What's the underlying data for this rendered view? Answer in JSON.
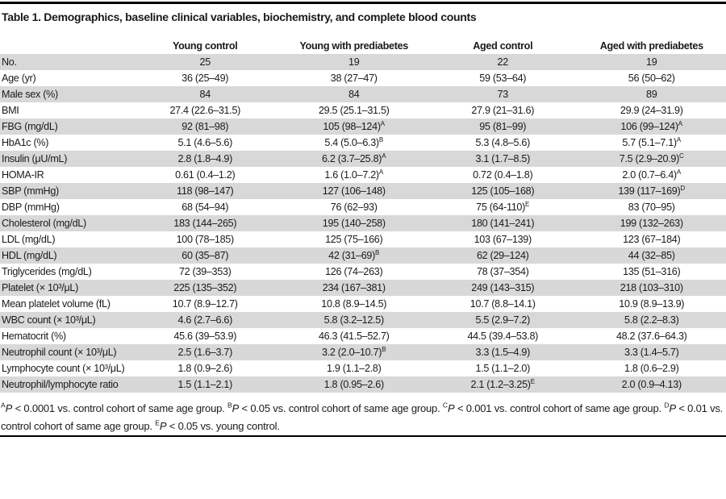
{
  "page": {
    "title": "Table 1. Demographics, baseline clinical variables, biochemistry, and complete blood counts"
  },
  "colors": {
    "stripe": "#d8d8d8",
    "rule": "#000000",
    "text": "#1a1a1a"
  },
  "table": {
    "columns": [
      "",
      "Young control",
      "Young with prediabetes",
      "Aged control",
      "Aged with prediabetes"
    ],
    "rows": [
      {
        "label": "No.",
        "cells": [
          {
            "t": "25"
          },
          {
            "t": "19"
          },
          {
            "t": "22"
          },
          {
            "t": "19"
          }
        ]
      },
      {
        "label": "Age (yr)",
        "cells": [
          {
            "t": "36 (25–49)"
          },
          {
            "t": "38 (27–47)"
          },
          {
            "t": "59 (53–64)"
          },
          {
            "t": "56 (50–62)"
          }
        ]
      },
      {
        "label": "Male sex (%)",
        "cells": [
          {
            "t": "84"
          },
          {
            "t": "84"
          },
          {
            "t": "73"
          },
          {
            "t": "89"
          }
        ]
      },
      {
        "label": "BMI",
        "cells": [
          {
            "t": "27.4 (22.6–31.5)"
          },
          {
            "t": "29.5 (25.1–31.5)"
          },
          {
            "t": "27.9 (21–31.6)"
          },
          {
            "t": "29.9 (24–31.9)"
          }
        ]
      },
      {
        "label": "FBG (mg/dL)",
        "cells": [
          {
            "t": "92 (81–98)"
          },
          {
            "t": "105 (98–124)",
            "s": "A"
          },
          {
            "t": "95 (81–99)"
          },
          {
            "t": "106 (99–124)",
            "s": "A"
          }
        ]
      },
      {
        "label": "HbA1c (%)",
        "cells": [
          {
            "t": "5.1 (4.6–5.6)"
          },
          {
            "t": "5.4 (5.0–6.3)",
            "s": "B"
          },
          {
            "t": "5.3 (4.8–5.6)"
          },
          {
            "t": "5.7 (5.1–7.1)",
            "s": "A"
          }
        ]
      },
      {
        "label": "Insulin (μU/mL)",
        "cells": [
          {
            "t": "2.8 (1.8–4.9)"
          },
          {
            "t": "6.2 (3.7–25.8)",
            "s": "A"
          },
          {
            "t": "3.1 (1.7–8.5)"
          },
          {
            "t": "7.5 (2.9–20.9)",
            "s": "C"
          }
        ]
      },
      {
        "label": "HOMA-IR",
        "cells": [
          {
            "t": "0.61 (0.4–1.2)"
          },
          {
            "t": "1.6 (1.0–7.2)",
            "s": "A"
          },
          {
            "t": "0.72 (0.4–1.8)"
          },
          {
            "t": "2.0 (0.7–6.4)",
            "s": "A"
          }
        ]
      },
      {
        "label": "SBP (mmHg)",
        "cells": [
          {
            "t": "118 (98–147)"
          },
          {
            "t": "127 (106–148)"
          },
          {
            "t": "125 (105–168)"
          },
          {
            "t": "139 (117–169)",
            "s": "D"
          }
        ]
      },
      {
        "label": "DBP (mmHg)",
        "cells": [
          {
            "t": "68 (54–94)"
          },
          {
            "t": "76 (62–93)"
          },
          {
            "t": "75 (64-110)",
            "s": "E"
          },
          {
            "t": "83 (70–95)"
          }
        ]
      },
      {
        "label": "Cholesterol (mg/dL)",
        "cells": [
          {
            "t": "183 (144–265)"
          },
          {
            "t": "195 (140–258)"
          },
          {
            "t": "180 (141–241)"
          },
          {
            "t": "199 (132–263)"
          }
        ]
      },
      {
        "label": "LDL (mg/dL)",
        "cells": [
          {
            "t": "100 (78–185)"
          },
          {
            "t": "125 (75–166)"
          },
          {
            "t": "103 (67–139)"
          },
          {
            "t": "123 (67–184)"
          }
        ]
      },
      {
        "label": "HDL (mg/dL)",
        "cells": [
          {
            "t": "60 (35–87)"
          },
          {
            "t": "42 (31–69)",
            "s": "B"
          },
          {
            "t": "62 (29–124)"
          },
          {
            "t": "44 (32–85)"
          }
        ]
      },
      {
        "label": "Triglycerides (mg/dL)",
        "cells": [
          {
            "t": "72 (39–353)"
          },
          {
            "t": "126 (74–263)"
          },
          {
            "t": "78 (37–354)"
          },
          {
            "t": "135 (51–316)"
          }
        ]
      },
      {
        "label": "Platelet (× 10³/μL)",
        "cells": [
          {
            "t": "225 (135–352)"
          },
          {
            "t": "234 (167–381)"
          },
          {
            "t": "249 (143–315)"
          },
          {
            "t": "218 (103–310)"
          }
        ]
      },
      {
        "label": "Mean platelet volume (fL)",
        "cells": [
          {
            "t": "10.7 (8.9–12.7)"
          },
          {
            "t": "10.8 (8.9–14.5)"
          },
          {
            "t": "10.7 (8.8–14.1)"
          },
          {
            "t": "10.9 (8.9–13.9)"
          }
        ]
      },
      {
        "label": "WBC count (× 10³/μL)",
        "cells": [
          {
            "t": "4.6 (2.7–6.6)"
          },
          {
            "t": "5.8 (3.2–12.5)"
          },
          {
            "t": "5.5 (2.9–7.2)"
          },
          {
            "t": "5.8 (2.2–8.3)"
          }
        ]
      },
      {
        "label": "Hematocrit (%)",
        "cells": [
          {
            "t": "45.6 (39–53.9)"
          },
          {
            "t": "46.3 (41.5–52.7)"
          },
          {
            "t": "44.5 (39.4–53.8)"
          },
          {
            "t": "48.2 (37.6–64.3)"
          }
        ]
      },
      {
        "label": "Neutrophil count (× 10³/μL)",
        "cells": [
          {
            "t": "2.5 (1.6–3.7)"
          },
          {
            "t": "3.2 (2.0–10.7)",
            "s": "B"
          },
          {
            "t": "3.3 (1.5–4.9)"
          },
          {
            "t": "3.3 (1.4–5.7)"
          }
        ]
      },
      {
        "label": "Lymphocyte count (× 10³/μL)",
        "cells": [
          {
            "t": "1.8 (0.9–2.6)"
          },
          {
            "t": "1.9 (1.1–2.8)"
          },
          {
            "t": "1.5 (1.1–2.0)"
          },
          {
            "t": "1.8 (0.6–2.9)"
          }
        ]
      },
      {
        "label": "Neutrophil/lymphocyte ratio",
        "cells": [
          {
            "t": "1.5 (1.1–2.1)"
          },
          {
            "t": "1.8 (0.95–2.6)"
          },
          {
            "t": "2.1 (1.2–3.25)",
            "s": "E"
          },
          {
            "t": "2.0 (0.9–4.13)"
          }
        ]
      }
    ]
  },
  "footnotes": [
    {
      "marker": "A",
      "stat": "P",
      "rest": " < 0.0001 vs. control cohort of same age group."
    },
    {
      "marker": "B",
      "stat": "P",
      "rest": " < 0.05 vs. control cohort of same age group."
    },
    {
      "marker": "C",
      "stat": "P",
      "rest": " < 0.001 vs. control cohort of same age group."
    },
    {
      "marker": "D",
      "stat": "P",
      "rest": " < 0.01 vs. control cohort of same age group."
    },
    {
      "marker": "E",
      "stat": "P",
      "rest": " < 0.05 vs. young control."
    }
  ]
}
